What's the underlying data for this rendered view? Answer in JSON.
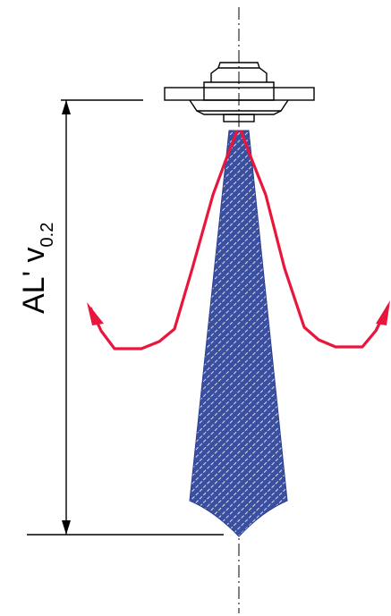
{
  "dimension_label": {
    "main": "AL' v",
    "subscript": "0.2"
  },
  "colors": {
    "outline": "#000000",
    "beam_fill": "#3b4fa0",
    "beam_hatch": "#ffffff",
    "radiation_curve": "#e8163c"
  }
}
